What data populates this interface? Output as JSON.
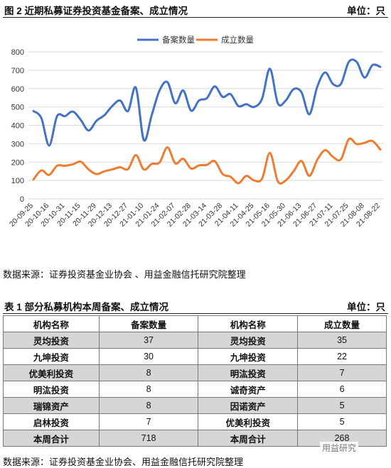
{
  "figure": {
    "title": "图 2  近期私募证券投资基金备案、成立情况",
    "unit": "单位：只"
  },
  "chart_data": {
    "type": "line",
    "x": [
      "20-09-25",
      "",
      "20-10-16",
      "",
      "20-10-31",
      "",
      "20-11-15",
      "",
      "20-11-29",
      "",
      "20-12-13",
      "",
      "20-12-27",
      "",
      "21-01-10",
      "",
      "21-01-24",
      "",
      "21-02-07",
      "",
      "21-02-28",
      "",
      "21-03-14",
      "",
      "21-03-28",
      "",
      "21-04-11",
      "",
      "21-04-25",
      "",
      "21-05-16",
      "",
      "21-05-30",
      "",
      "21-06-13",
      "",
      "21-06-27",
      "",
      "21-07-11",
      "",
      "21-07-25",
      "",
      "21-08-08",
      "",
      "21-08-22"
    ],
    "series": [
      {
        "name": "备案数量",
        "color": "#4472c4",
        "values": [
          478,
          440,
          290,
          450,
          450,
          475,
          430,
          372,
          425,
          455,
          505,
          535,
          478,
          605,
          320,
          455,
          590,
          635,
          520,
          590,
          480,
          535,
          548,
          612,
          555,
          570,
          505,
          515,
          500,
          545,
          708,
          520,
          535,
          597,
          580,
          460,
          610,
          688,
          625,
          625,
          745,
          745,
          660,
          728,
          718
        ]
      },
      {
        "name": "成立数量",
        "color": "#ed7d31",
        "values": [
          105,
          155,
          130,
          180,
          180,
          188,
          202,
          160,
          135,
          150,
          160,
          172,
          162,
          238,
          160,
          190,
          198,
          280,
          193,
          218,
          165,
          182,
          185,
          205,
          135,
          120,
          85,
          125,
          100,
          110,
          250,
          95,
          100,
          150,
          206,
          125,
          212,
          265,
          228,
          215,
          325,
          298,
          305,
          315,
          268
        ]
      }
    ],
    "ylim": [
      0,
      800
    ],
    "yticks": [
      0,
      100,
      200,
      300,
      400,
      500,
      600,
      700,
      800
    ],
    "legend": "top-center",
    "grid": true
  },
  "source1": "数据来源：证券投资基金业协会  、用益金融信托研究院整理",
  "table": {
    "title": "表 1  部分私募机构本周备案、成立情况",
    "unit": "单位：只",
    "headers": [
      "机构名称",
      "备案数量",
      "机构名称",
      "成立数量"
    ],
    "rows": [
      [
        "灵均投资",
        "37",
        "灵均投资",
        "35"
      ],
      [
        "九坤投资",
        "30",
        "九坤投资",
        "22"
      ],
      [
        "优美利投资",
        "8",
        "明汯投资",
        "7"
      ],
      [
        "明汯投资",
        "8",
        "诚奇资产",
        "6"
      ],
      [
        "瑞锦资产",
        "8",
        "因诺资产",
        "5"
      ],
      [
        "启林投资",
        "7",
        "优美利投资",
        "5"
      ],
      [
        "本周合计",
        "718",
        "本周合计",
        "268"
      ]
    ]
  },
  "source2": "数据来源：证券投资基金业协会、用益金融信托研究院整理",
  "watermark": "用益研究"
}
